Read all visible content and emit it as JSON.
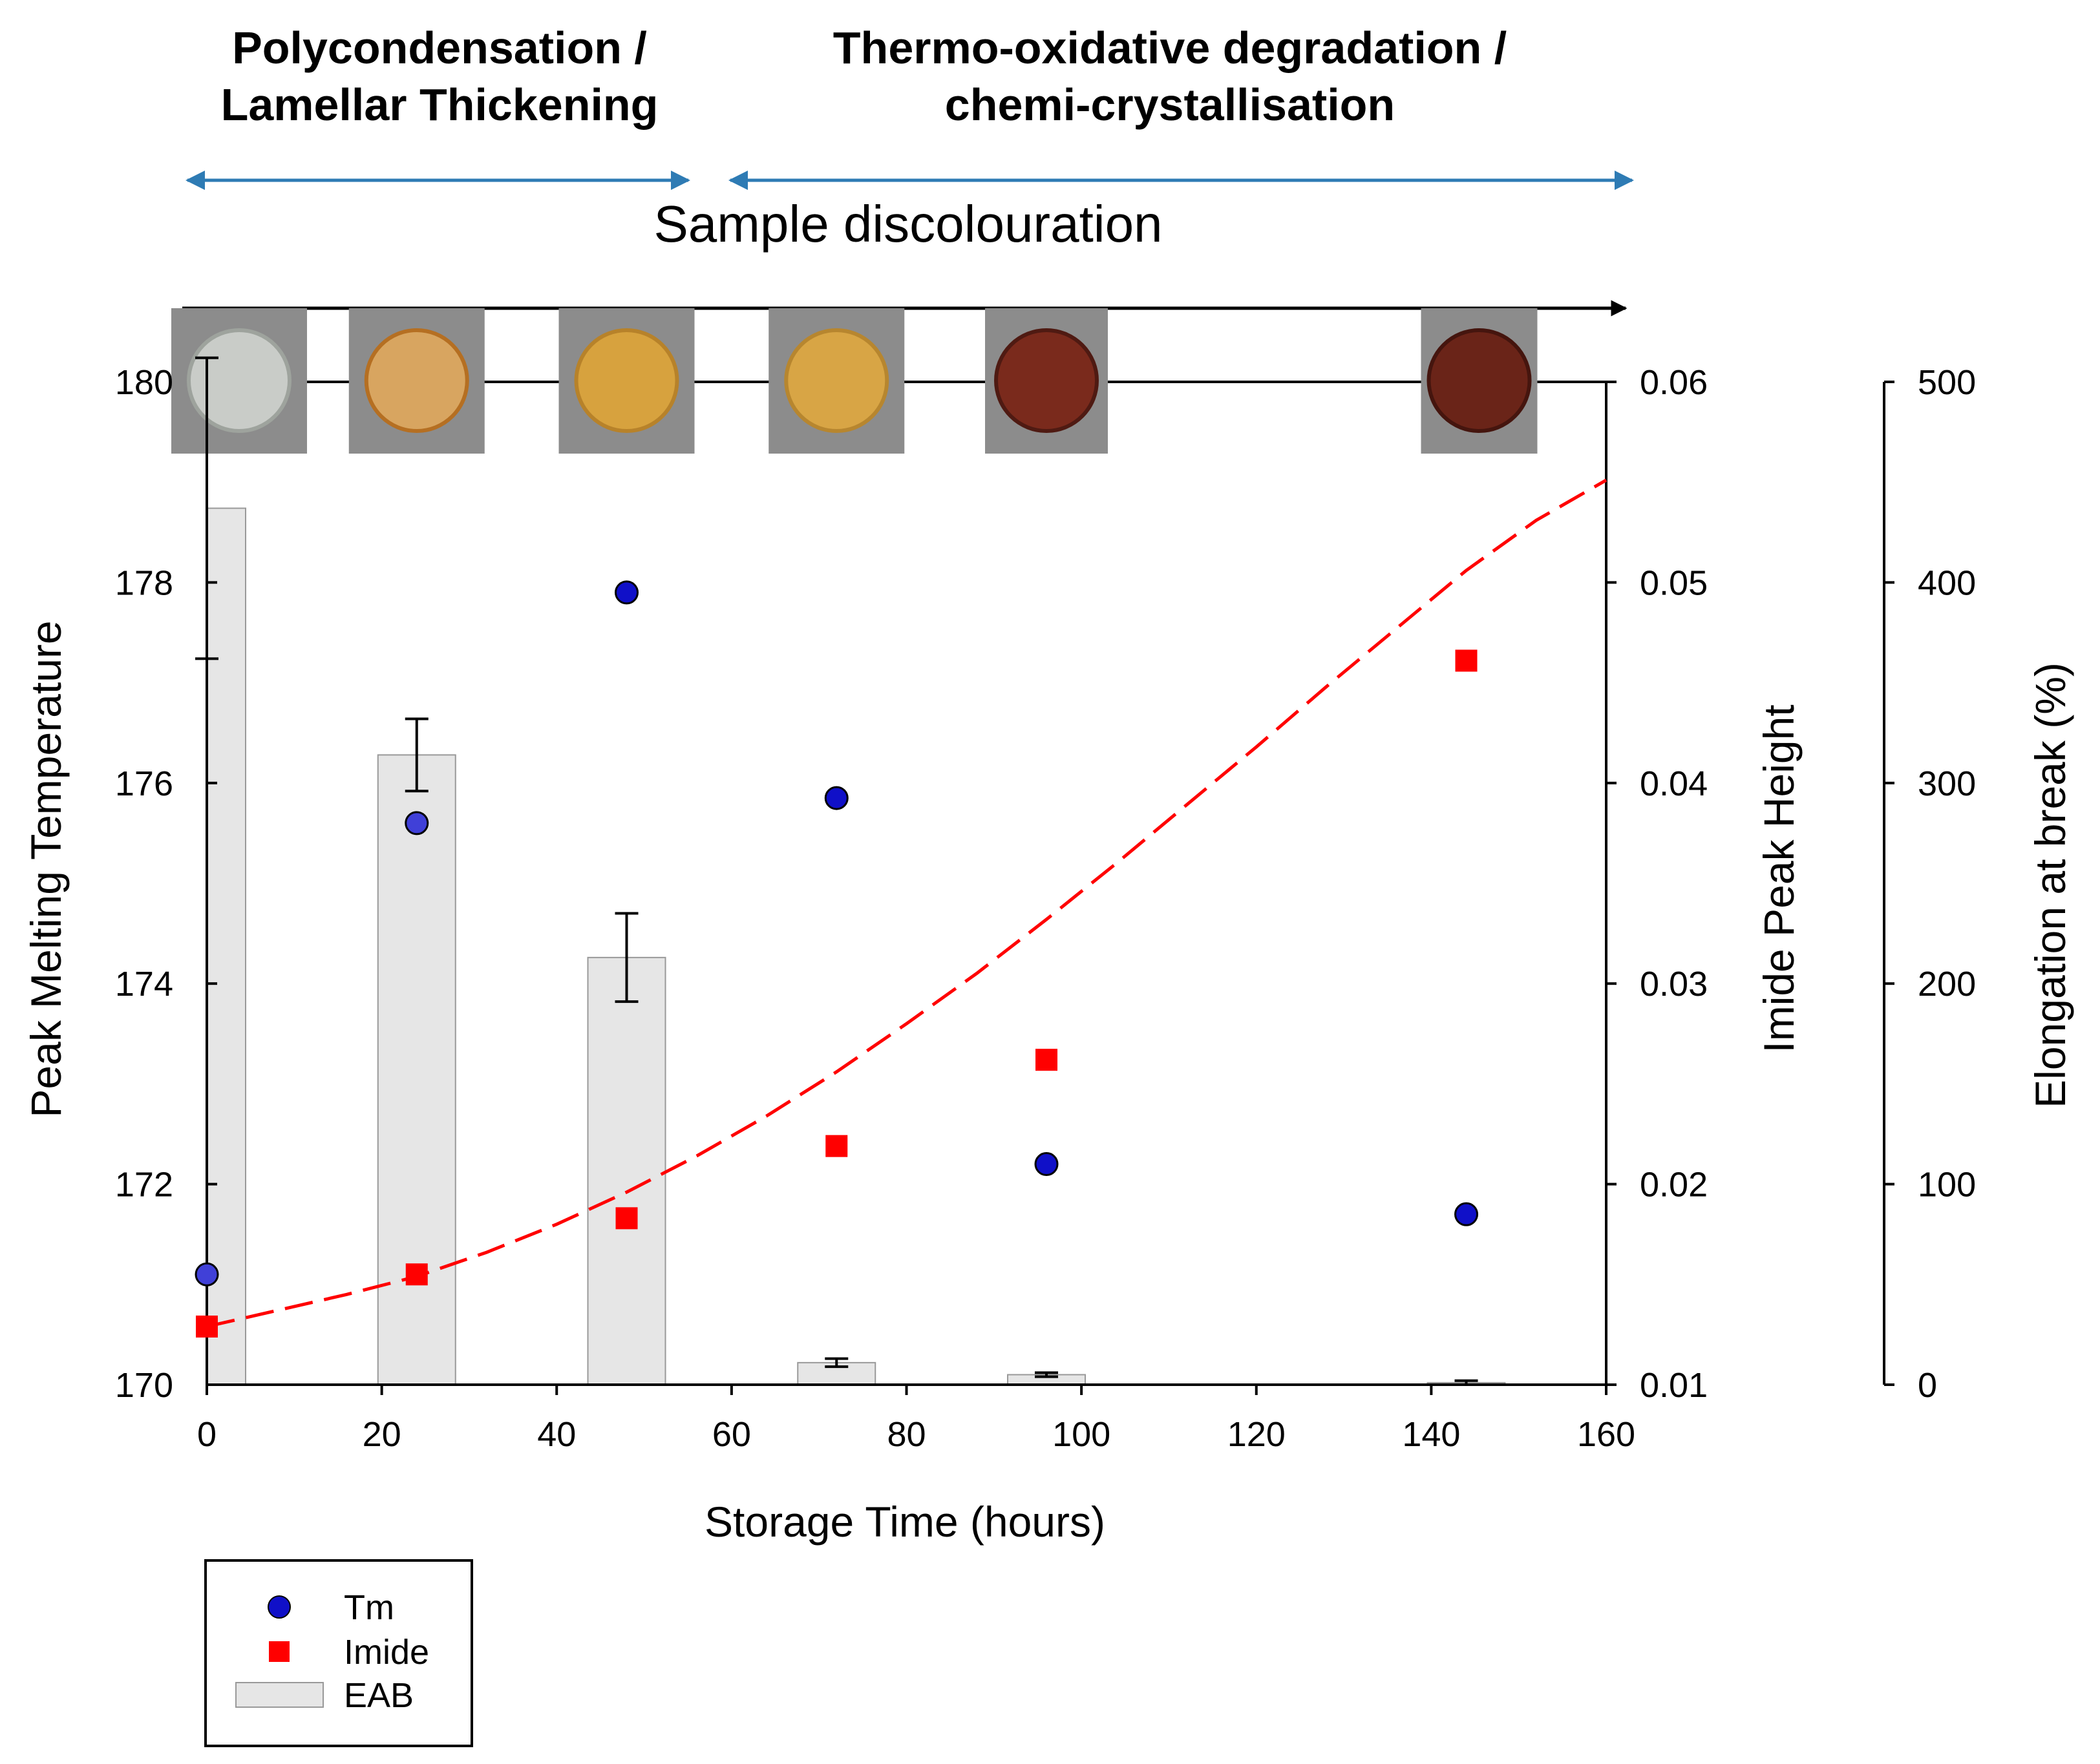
{
  "chart_data": {
    "type": "combo",
    "annotations": {
      "phase_left_line1": "Polycondensation /",
      "phase_left_line2": "Lamellar Thickening",
      "phase_right_line1": "Thermo-oxidative degradation /",
      "phase_right_line2": "chemi-crystallisation",
      "discolouration": "Sample discolouration"
    },
    "xlabel": "Storage Time (hours)",
    "xlim": [
      0,
      160
    ],
    "xticks": [
      "0",
      "20",
      "40",
      "60",
      "80",
      "100",
      "120",
      "140",
      "160"
    ],
    "y_left": {
      "label": "Peak Melting Temperature",
      "lim": [
        170,
        180
      ],
      "ticks": [
        "170",
        "172",
        "174",
        "176",
        "178",
        "180"
      ]
    },
    "y_right1": {
      "label": "Imide Peak Height",
      "lim": [
        0.01,
        0.06
      ],
      "ticks": [
        "0.01",
        "0.02",
        "0.03",
        "0.04",
        "0.05",
        "0.06"
      ]
    },
    "y_right2": {
      "label": "Elongation at break (%)",
      "lim": [
        0,
        500
      ],
      "ticks": [
        "0",
        "100",
        "200",
        "300",
        "400",
        "500"
      ]
    },
    "samples": [
      {
        "x": 0,
        "color": "#c9ccc8",
        "edge": "#9ea39d"
      },
      {
        "x": 24,
        "color": "#d8a560",
        "edge": "#b56f22"
      },
      {
        "x": 48,
        "color": "#d7a23e",
        "edge": "#b7822a"
      },
      {
        "x": 72,
        "color": "#d8a545",
        "edge": "#b7862f"
      },
      {
        "x": 96,
        "color": "#7a2a1c",
        "edge": "#4f1a12"
      },
      {
        "x": 144,
        "color": "#6a2418",
        "edge": "#45150e"
      }
    ],
    "series": [
      {
        "name": "Tm",
        "marker": "circle",
        "color": "#1010c8",
        "x": [
          0,
          24,
          48,
          72,
          96,
          144
        ],
        "y": [
          171.1,
          175.6,
          177.9,
          175.85,
          172.2,
          171.7
        ]
      },
      {
        "name": "Imide",
        "marker": "square",
        "color": "#ff0000",
        "x": [
          0,
          24,
          48,
          72,
          96,
          144
        ],
        "y": [
          0.0129,
          0.0155,
          0.0183,
          0.0219,
          0.0262,
          0.0461
        ]
      },
      {
        "name": "EAB",
        "type": "bar",
        "color": "#e6e6e6",
        "x": [
          0,
          24,
          48,
          72,
          96,
          144
        ],
        "y": [
          437,
          314,
          213,
          11,
          5,
          1
        ],
        "err": [
          75,
          18,
          22,
          2,
          1,
          1
        ]
      }
    ],
    "fit": {
      "series": "Imide",
      "style": "dashed",
      "color": "#ff0000",
      "x": [
        0,
        8,
        16,
        24,
        32,
        40,
        48,
        56,
        64,
        72,
        80,
        88,
        96,
        104,
        112,
        120,
        128,
        136,
        144,
        152,
        160
      ],
      "y": [
        0.0129,
        0.0137,
        0.0145,
        0.0154,
        0.0166,
        0.018,
        0.0196,
        0.0214,
        0.0234,
        0.0256,
        0.028,
        0.0305,
        0.0332,
        0.036,
        0.0389,
        0.0418,
        0.0448,
        0.0477,
        0.0506,
        0.0531,
        0.0551
      ]
    },
    "legend": {
      "position": "bottom-left",
      "entries": [
        "Tm",
        "Imide",
        "EAB"
      ]
    }
  }
}
